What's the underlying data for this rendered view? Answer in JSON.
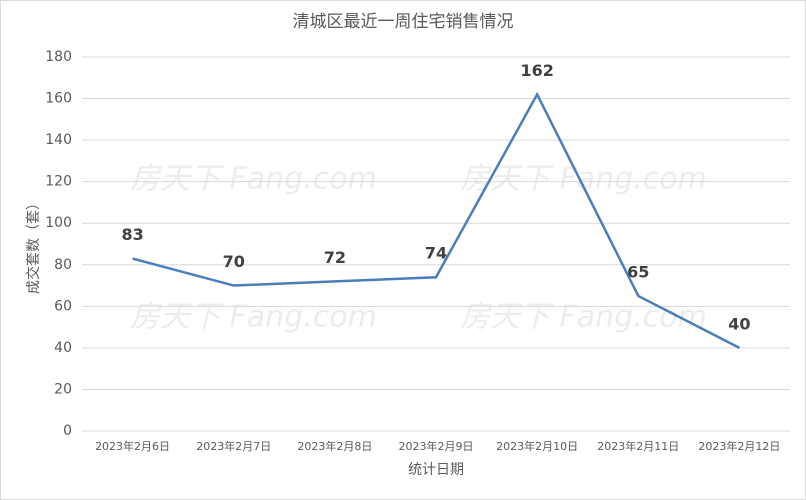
{
  "chart_data": {
    "type": "line",
    "title": "清城区最近一周住宅销售情况",
    "y_label": "成交套数（套）",
    "x_label": "统计日期",
    "categories": [
      "2023年2月6日",
      "2023年2月7日",
      "2023年2月8日",
      "2023年2月9日",
      "2023年2月10日",
      "2023年2月11日",
      "2023年2月12日"
    ],
    "values": [
      83,
      70,
      72,
      74,
      162,
      65,
      40
    ],
    "color": "#4a7ebb",
    "ylim": [
      0,
      180
    ],
    "yticks": [
      0,
      20,
      40,
      60,
      80,
      100,
      120,
      140,
      160,
      180
    ],
    "grid": true,
    "watermark": "房天下 Fang.com"
  }
}
